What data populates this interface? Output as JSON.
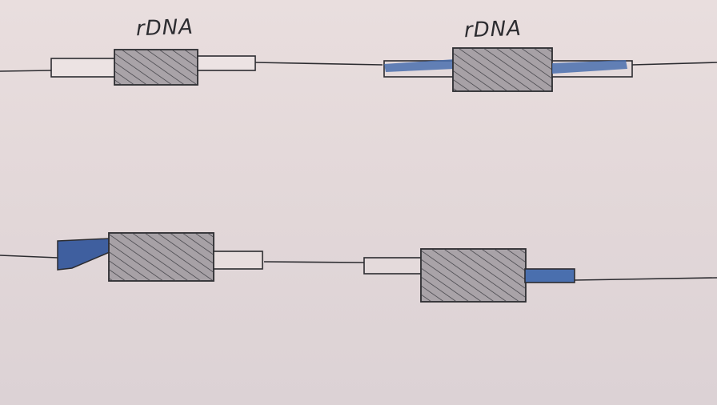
{
  "labels": {
    "top_left": "rDNA",
    "top_right": "rDNA"
  },
  "colors": {
    "paper": "#e6dcdc",
    "ink": "#2c2c30",
    "hatch_fill": "#a7a1a6",
    "blue_highlight": "#4a6fae"
  }
}
